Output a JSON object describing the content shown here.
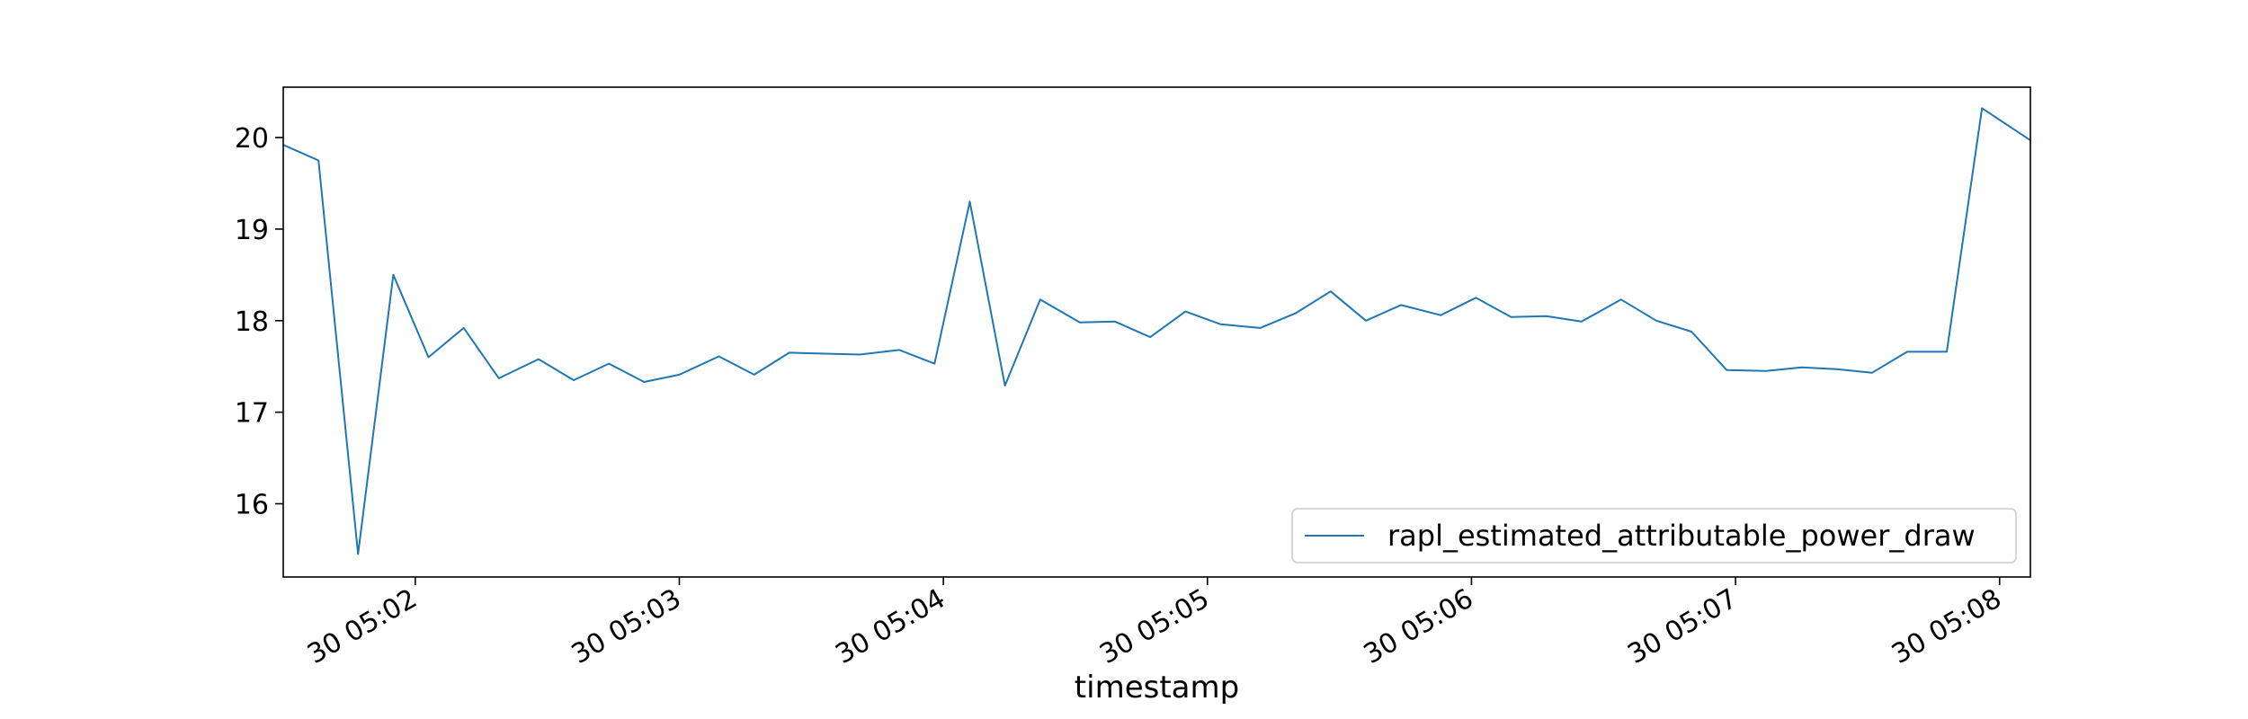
{
  "chart_data": {
    "type": "line",
    "title": "",
    "xlabel": "timestamp",
    "ylabel": "",
    "grid": false,
    "legend_position": "lower-right",
    "x_unit": "HH:MM:SS",
    "xlim": [
      "05:01:30",
      "05:08:07"
    ],
    "ylim": [
      15.2,
      20.55
    ],
    "x_ticks": [
      {
        "value": "05:02:00",
        "label": "30 05:02"
      },
      {
        "value": "05:03:00",
        "label": "30 05:03"
      },
      {
        "value": "05:04:00",
        "label": "30 05:04"
      },
      {
        "value": "05:05:00",
        "label": "30 05:05"
      },
      {
        "value": "05:06:00",
        "label": "30 05:06"
      },
      {
        "value": "05:07:00",
        "label": "30 05:07"
      },
      {
        "value": "05:08:00",
        "label": "30 05:08"
      }
    ],
    "y_ticks": [
      {
        "value": 16,
        "label": "16"
      },
      {
        "value": 17,
        "label": "17"
      },
      {
        "value": 18,
        "label": "18"
      },
      {
        "value": 19,
        "label": "19"
      },
      {
        "value": 20,
        "label": "20"
      }
    ],
    "series": [
      {
        "name": "rapl_estimated_attributable_power_draw",
        "color": "#1f77b4",
        "x": [
          "05:01:30",
          "05:01:38",
          "05:01:47",
          "05:01:55",
          "05:02:03",
          "05:02:11",
          "05:02:19",
          "05:02:28",
          "05:02:36",
          "05:02:44",
          "05:02:52",
          "05:03:00",
          "05:03:09",
          "05:03:17",
          "05:03:25",
          "05:03:41",
          "05:03:50",
          "05:03:58",
          "05:04:06",
          "05:04:14",
          "05:04:22",
          "05:04:31",
          "05:04:39",
          "05:04:47",
          "05:04:55",
          "05:05:03",
          "05:05:12",
          "05:05:20",
          "05:05:28",
          "05:05:36",
          "05:05:44",
          "05:05:53",
          "05:06:01",
          "05:06:09",
          "05:06:17",
          "05:06:25",
          "05:06:34",
          "05:06:42",
          "05:06:50",
          "05:06:58",
          "05:07:07",
          "05:07:15",
          "05:07:23",
          "05:07:31",
          "05:07:39",
          "05:07:48",
          "05:07:56",
          "05:08:07"
        ],
        "values": [
          19.92,
          19.75,
          15.45,
          18.5,
          17.6,
          17.92,
          17.37,
          17.58,
          17.35,
          17.53,
          17.33,
          17.41,
          17.61,
          17.41,
          17.65,
          17.63,
          17.68,
          17.53,
          19.3,
          17.29,
          18.23,
          17.98,
          17.99,
          17.82,
          18.1,
          17.96,
          17.92,
          18.08,
          18.32,
          18.0,
          18.17,
          18.06,
          18.25,
          18.04,
          18.05,
          17.99,
          18.23,
          18.0,
          17.88,
          17.46,
          17.45,
          17.49,
          17.47,
          17.43,
          17.66,
          17.66,
          20.32,
          19.97
        ]
      }
    ]
  }
}
